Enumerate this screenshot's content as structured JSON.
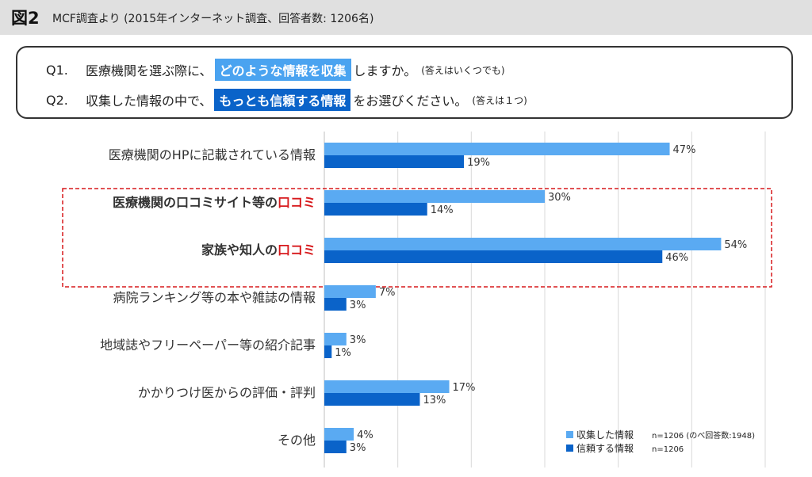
{
  "header": {
    "fig_label": "図2",
    "caption": "MCF調査より (2015年インターネット調査、回答者数: 1206名)"
  },
  "questions": {
    "q1": {
      "num": "Q1.",
      "before": "医療機関を選ぶ際に、",
      "highlight": "どのような情報を収集",
      "after": "しますか。",
      "note": "(答えはいくつでも)"
    },
    "q2": {
      "num": "Q2.",
      "before": "収集した情報の中で、",
      "highlight": "もっとも信頼する情報",
      "after": "をお選びください。",
      "note": "(答えは１つ)"
    }
  },
  "colors": {
    "collect": "#5aaaf2",
    "trust": "#0a63c9",
    "accent": "#d7191c",
    "grid": "#d9d9d9",
    "dash": "#d7191c"
  },
  "chart_data": {
    "type": "bar",
    "orientation": "horizontal",
    "xlim": [
      0,
      60
    ],
    "grid": true,
    "categories": [
      {
        "label": "医療機関のHPに記載されている情報",
        "bold": false,
        "accent": ""
      },
      {
        "label": "医療機関の口コミサイト等の",
        "bold": true,
        "accent": "口コミ"
      },
      {
        "label": "家族や知人の",
        "bold": true,
        "accent": "口コミ"
      },
      {
        "label": "病院ランキング等の本や雑誌の情報",
        "bold": false,
        "accent": ""
      },
      {
        "label": "地域誌やフリーペーパー等の紹介記事",
        "bold": false,
        "accent": ""
      },
      {
        "label": "かかりつけ医からの評価・評判",
        "bold": false,
        "accent": ""
      },
      {
        "label": "その他",
        "bold": false,
        "accent": ""
      }
    ],
    "series": [
      {
        "name": "収集した情報",
        "note": "n=1206 (のべ回答数:1948)",
        "values": [
          47,
          30,
          54,
          7,
          3,
          17,
          4
        ]
      },
      {
        "name": "信頼する情報",
        "note": "n=1206",
        "values": [
          19,
          14,
          46,
          3,
          1,
          13,
          3
        ]
      }
    ],
    "highlight_categories": [
      1,
      2
    ],
    "legend_position": "bottom-right"
  }
}
